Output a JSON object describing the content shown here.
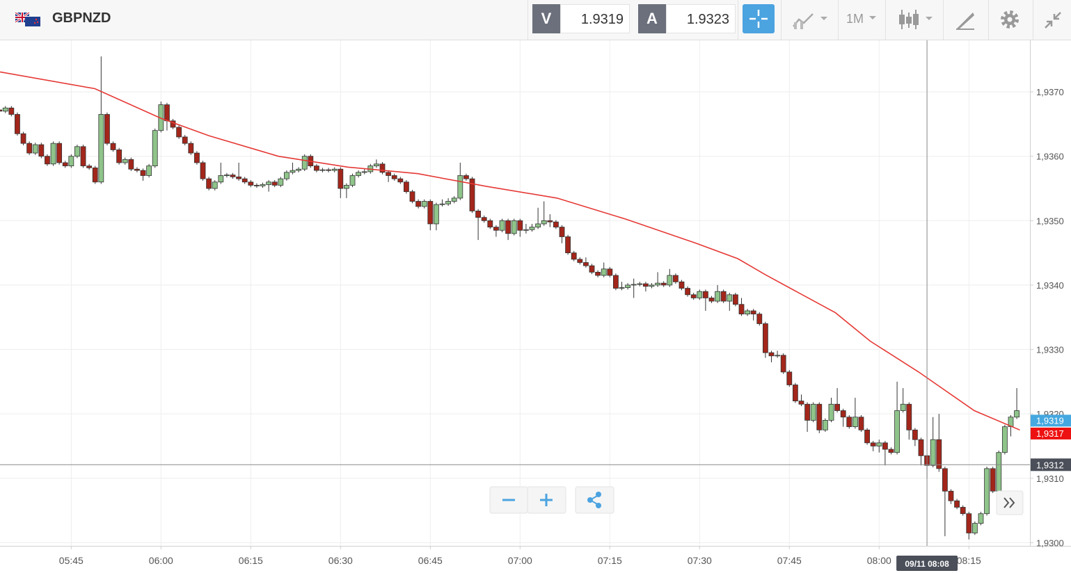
{
  "toolbar": {
    "symbol": "GBPNZD",
    "bid": {
      "label": "V",
      "value": 1.9319
    },
    "ask": {
      "label": "A",
      "value": 1.9323
    },
    "timeframe": "1M"
  },
  "chart_data": {
    "type": "candlestick",
    "up_color": "#8fc48a",
    "down_color": "#a3261b",
    "xlim": [
      333.1,
      505.2
    ],
    "ylim": [
      1.92995,
      1.9378
    ],
    "xticks": [
      {
        "value": 345,
        "label": "05:45"
      },
      {
        "value": 360,
        "label": "06:00"
      },
      {
        "value": 375,
        "label": "06:15"
      },
      {
        "value": 390,
        "label": "06:30"
      },
      {
        "value": 405,
        "label": "06:45"
      },
      {
        "value": 420,
        "label": "07:00"
      },
      {
        "value": 435,
        "label": "07:15"
      },
      {
        "value": 450,
        "label": "07:30"
      },
      {
        "value": 465,
        "label": "07:45"
      },
      {
        "value": 480,
        "label": "08:00"
      },
      {
        "value": 495,
        "label": "08:15"
      }
    ],
    "yticks": [
      {
        "value": 1.93,
        "label": "1,9300"
      },
      {
        "value": 1.931,
        "label": "1,9310"
      },
      {
        "value": 1.932,
        "label": "1,9320"
      },
      {
        "value": 1.933,
        "label": "1,9330"
      },
      {
        "value": 1.934,
        "label": "1,9340"
      },
      {
        "value": 1.935,
        "label": "1,9350"
      },
      {
        "value": 1.936,
        "label": "1,9360"
      },
      {
        "value": 1.937,
        "label": "1,9370"
      }
    ],
    "grid": true,
    "x": [
      333,
      334,
      335,
      336,
      337,
      338,
      339,
      340,
      341,
      342,
      343,
      344,
      345,
      346,
      347,
      348,
      349,
      350,
      351,
      352,
      353,
      354,
      355,
      356,
      357,
      358,
      359,
      360,
      361,
      362,
      363,
      364,
      365,
      366,
      367,
      368,
      369,
      370,
      371,
      372,
      373,
      374,
      375,
      376,
      377,
      378,
      379,
      380,
      381,
      382,
      383,
      384,
      385,
      386,
      387,
      388,
      389,
      390,
      391,
      392,
      393,
      394,
      395,
      396,
      397,
      398,
      399,
      400,
      401,
      402,
      403,
      404,
      405,
      406,
      407,
      408,
      409,
      410,
      411,
      412,
      413,
      414,
      415,
      416,
      417,
      418,
      419,
      420,
      421,
      422,
      423,
      424,
      425,
      426,
      427,
      428,
      429,
      430,
      431,
      432,
      433,
      434,
      435,
      436,
      437,
      438,
      439,
      440,
      441,
      442,
      443,
      444,
      445,
      446,
      447,
      448,
      449,
      450,
      451,
      452,
      453,
      454,
      455,
      456,
      457,
      458,
      459,
      460,
      461,
      462,
      463,
      464,
      465,
      466,
      467,
      468,
      469,
      470,
      471,
      472,
      473,
      474,
      475,
      476,
      477,
      478,
      479,
      480,
      481,
      482,
      483,
      484,
      485,
      486,
      487,
      488,
      489,
      490,
      491,
      492,
      493,
      494,
      495,
      496,
      497,
      498,
      499,
      500,
      501,
      502,
      503
    ],
    "ohlc": [
      [
        1.93672,
        1.93675,
        1.93667,
        1.9367
      ],
      [
        1.9367,
        1.93678,
        1.93667,
        1.93675
      ],
      [
        1.93675,
        1.93678,
        1.93662,
        1.93665
      ],
      [
        1.93665,
        1.93668,
        1.93632,
        1.93635
      ],
      [
        1.93635,
        1.93638,
        1.93617,
        1.9362
      ],
      [
        1.9362,
        1.93623,
        1.93602,
        1.93605
      ],
      [
        1.93605,
        1.93621,
        1.93602,
        1.93618
      ],
      [
        1.93618,
        1.93621,
        1.93597,
        1.936
      ],
      [
        1.936,
        1.93603,
        1.93585,
        1.93588
      ],
      [
        1.93588,
        1.93623,
        1.93585,
        1.9362
      ],
      [
        1.9362,
        1.93623,
        1.93587,
        1.9359
      ],
      [
        1.9359,
        1.93593,
        1.93582,
        1.93585
      ],
      [
        1.93585,
        1.93603,
        1.93582,
        1.936
      ],
      [
        1.936,
        1.93618,
        1.93597,
        1.93615
      ],
      [
        1.93615,
        1.93618,
        1.93582,
        1.93585
      ],
      [
        1.93585,
        1.93588,
        1.93579,
        1.93582
      ],
      [
        1.93582,
        1.93585,
        1.93557,
        1.9356
      ],
      [
        1.9356,
        1.93755,
        1.93557,
        1.93665
      ],
      [
        1.93665,
        1.93668,
        1.93617,
        1.9362
      ],
      [
        1.9362,
        1.93623,
        1.93607,
        1.9361
      ],
      [
        1.9361,
        1.93613,
        1.93587,
        1.9359
      ],
      [
        1.9359,
        1.93598,
        1.93587,
        1.93595
      ],
      [
        1.93595,
        1.93598,
        1.93577,
        1.9358
      ],
      [
        1.9358,
        1.93583,
        1.93575,
        1.93578
      ],
      [
        1.93578,
        1.93581,
        1.93562,
        1.9357
      ],
      [
        1.9357,
        1.93588,
        1.93567,
        1.93585
      ],
      [
        1.93585,
        1.93643,
        1.93582,
        1.9364
      ],
      [
        1.9364,
        1.93685,
        1.93637,
        1.9368
      ],
      [
        1.9368,
        1.93683,
        1.9364,
        1.93655
      ],
      [
        1.93655,
        1.93658,
        1.93642,
        1.93645
      ],
      [
        1.93645,
        1.93648,
        1.93627,
        1.9363
      ],
      [
        1.9363,
        1.93633,
        1.93617,
        1.9362
      ],
      [
        1.9362,
        1.93623,
        1.93602,
        1.93605
      ],
      [
        1.93605,
        1.93608,
        1.93587,
        1.9359
      ],
      [
        1.9359,
        1.93593,
        1.93562,
        1.93565
      ],
      [
        1.93565,
        1.93568,
        1.93547,
        1.9355
      ],
      [
        1.9355,
        1.93563,
        1.93547,
        1.9356
      ],
      [
        1.9356,
        1.9359,
        1.93557,
        1.9357
      ],
      [
        1.9357,
        1.93574,
        1.93567,
        1.93571
      ],
      [
        1.93571,
        1.93574,
        1.93565,
        1.93568
      ],
      [
        1.93568,
        1.9359,
        1.93562,
        1.93565
      ],
      [
        1.93565,
        1.93568,
        1.93557,
        1.9356
      ],
      [
        1.9356,
        1.93563,
        1.93552,
        1.93555
      ],
      [
        1.93555,
        1.93558,
        1.93551,
        1.93554
      ],
      [
        1.93554,
        1.93559,
        1.93551,
        1.93556
      ],
      [
        1.93556,
        1.93563,
        1.93545,
        1.9356
      ],
      [
        1.9356,
        1.93563,
        1.93552,
        1.93555
      ],
      [
        1.93555,
        1.93568,
        1.93552,
        1.93565
      ],
      [
        1.93565,
        1.93578,
        1.93562,
        1.93575
      ],
      [
        1.93575,
        1.9359,
        1.93572,
        1.93578
      ],
      [
        1.93578,
        1.93583,
        1.93575,
        1.9358
      ],
      [
        1.9358,
        1.93603,
        1.93577,
        1.936
      ],
      [
        1.936,
        1.93603,
        1.93582,
        1.93585
      ],
      [
        1.93585,
        1.93588,
        1.93575,
        1.93578
      ],
      [
        1.93578,
        1.93582,
        1.93575,
        1.93579
      ],
      [
        1.93579,
        1.93582,
        1.93575,
        1.93578
      ],
      [
        1.93578,
        1.93583,
        1.93575,
        1.9358
      ],
      [
        1.9358,
        1.93583,
        1.93535,
        1.9355
      ],
      [
        1.9355,
        1.93558,
        1.93535,
        1.93555
      ],
      [
        1.93555,
        1.93573,
        1.93552,
        1.9357
      ],
      [
        1.9357,
        1.93578,
        1.93567,
        1.93575
      ],
      [
        1.93575,
        1.9358,
        1.93572,
        1.93576
      ],
      [
        1.93576,
        1.93588,
        1.93573,
        1.93585
      ],
      [
        1.93585,
        1.93595,
        1.93582,
        1.93588
      ],
      [
        1.93588,
        1.93591,
        1.93572,
        1.93575
      ],
      [
        1.93575,
        1.93578,
        1.9356,
        1.9357
      ],
      [
        1.9357,
        1.93573,
        1.93562,
        1.93565
      ],
      [
        1.93565,
        1.93568,
        1.93557,
        1.9356
      ],
      [
        1.9356,
        1.93563,
        1.93542,
        1.93545
      ],
      [
        1.93545,
        1.93548,
        1.93527,
        1.9353
      ],
      [
        1.9353,
        1.93533,
        1.93519,
        1.93522
      ],
      [
        1.93522,
        1.93533,
        1.93519,
        1.9353
      ],
      [
        1.9353,
        1.93533,
        1.93485,
        1.93495
      ],
      [
        1.93495,
        1.93528,
        1.93485,
        1.93525
      ],
      [
        1.93525,
        1.93533,
        1.93522,
        1.93526
      ],
      [
        1.93526,
        1.93535,
        1.93523,
        1.9353
      ],
      [
        1.9353,
        1.93538,
        1.93527,
        1.93535
      ],
      [
        1.93535,
        1.9359,
        1.93532,
        1.9357
      ],
      [
        1.9357,
        1.93573,
        1.93562,
        1.93565
      ],
      [
        1.93565,
        1.93568,
        1.93512,
        1.93515
      ],
      [
        1.93515,
        1.93518,
        1.9347,
        1.93505
      ],
      [
        1.93505,
        1.93508,
        1.93497,
        1.935
      ],
      [
        1.935,
        1.93503,
        1.93487,
        1.9349
      ],
      [
        1.9349,
        1.93493,
        1.93475,
        1.93485
      ],
      [
        1.93485,
        1.93503,
        1.93482,
        1.935
      ],
      [
        1.935,
        1.93503,
        1.9347,
        1.9348
      ],
      [
        1.9348,
        1.93503,
        1.93477,
        1.935
      ],
      [
        1.935,
        1.93503,
        1.93475,
        1.93485
      ],
      [
        1.93485,
        1.93495,
        1.9348,
        1.93486
      ],
      [
        1.93486,
        1.93495,
        1.93483,
        1.9349
      ],
      [
        1.9349,
        1.9352,
        1.93487,
        1.93495
      ],
      [
        1.93495,
        1.9353,
        1.93492,
        1.935
      ],
      [
        1.935,
        1.9351,
        1.9349,
        1.93498
      ],
      [
        1.93498,
        1.93501,
        1.93487,
        1.9349
      ],
      [
        1.9349,
        1.93493,
        1.93465,
        1.93475
      ],
      [
        1.93475,
        1.93478,
        1.93447,
        1.9345
      ],
      [
        1.9345,
        1.93453,
        1.93437,
        1.9344
      ],
      [
        1.9344,
        1.93443,
        1.93432,
        1.93435
      ],
      [
        1.93435,
        1.93443,
        1.93427,
        1.9343
      ],
      [
        1.9343,
        1.93433,
        1.93417,
        1.9342
      ],
      [
        1.9342,
        1.93423,
        1.93412,
        1.93415
      ],
      [
        1.93415,
        1.93435,
        1.93412,
        1.93425
      ],
      [
        1.93425,
        1.93428,
        1.93412,
        1.93415
      ],
      [
        1.93415,
        1.93418,
        1.93392,
        1.93395
      ],
      [
        1.93395,
        1.93405,
        1.93392,
        1.93396
      ],
      [
        1.93396,
        1.93403,
        1.93393,
        1.934
      ],
      [
        1.934,
        1.9341,
        1.9338,
        1.93401
      ],
      [
        1.93401,
        1.93405,
        1.93398,
        1.93402
      ],
      [
        1.93402,
        1.93405,
        1.9339,
        1.93398
      ],
      [
        1.93398,
        1.93403,
        1.93395,
        1.934
      ],
      [
        1.934,
        1.9342,
        1.93397,
        1.93403
      ],
      [
        1.93403,
        1.93406,
        1.93397,
        1.934
      ],
      [
        1.934,
        1.93425,
        1.93397,
        1.93415
      ],
      [
        1.93415,
        1.93418,
        1.93402,
        1.93405
      ],
      [
        1.93405,
        1.93408,
        1.93392,
        1.93395
      ],
      [
        1.93395,
        1.93398,
        1.93382,
        1.93385
      ],
      [
        1.93385,
        1.93388,
        1.93377,
        1.9338
      ],
      [
        1.9338,
        1.93393,
        1.93377,
        1.9339
      ],
      [
        1.9339,
        1.93393,
        1.9336,
        1.9338
      ],
      [
        1.9338,
        1.93383,
        1.93372,
        1.93375
      ],
      [
        1.93375,
        1.934,
        1.93372,
        1.9339
      ],
      [
        1.9339,
        1.93393,
        1.93372,
        1.93375
      ],
      [
        1.93375,
        1.93388,
        1.9336,
        1.93385
      ],
      [
        1.93385,
        1.93388,
        1.93367,
        1.9337
      ],
      [
        1.9337,
        1.9338,
        1.93352,
        1.93355
      ],
      [
        1.93355,
        1.93363,
        1.93352,
        1.9336
      ],
      [
        1.9336,
        1.93363,
        1.93345,
        1.93355
      ],
      [
        1.93355,
        1.93358,
        1.93337,
        1.9334
      ],
      [
        1.9334,
        1.93343,
        1.93287,
        1.93295
      ],
      [
        1.93295,
        1.93298,
        1.9328,
        1.9329
      ],
      [
        1.9329,
        1.93298,
        1.93287,
        1.93291
      ],
      [
        1.93291,
        1.93294,
        1.93262,
        1.93265
      ],
      [
        1.93265,
        1.93268,
        1.93242,
        1.93245
      ],
      [
        1.93245,
        1.93248,
        1.93217,
        1.9322
      ],
      [
        1.9322,
        1.9323,
        1.93212,
        1.93215
      ],
      [
        1.93215,
        1.93218,
        1.93172,
        1.9319
      ],
      [
        1.9319,
        1.93218,
        1.93187,
        1.93215
      ],
      [
        1.93215,
        1.93218,
        1.9317,
        1.93175
      ],
      [
        1.93175,
        1.93193,
        1.93172,
        1.9319
      ],
      [
        1.9319,
        1.93225,
        1.93187,
        1.93215
      ],
      [
        1.93215,
        1.9324,
        1.93202,
        1.93205
      ],
      [
        1.93205,
        1.93208,
        1.9318,
        1.93195
      ],
      [
        1.93195,
        1.93198,
        1.93177,
        1.9318
      ],
      [
        1.9318,
        1.93225,
        1.93177,
        1.93195
      ],
      [
        1.93195,
        1.93198,
        1.93172,
        1.93175
      ],
      [
        1.93175,
        1.93178,
        1.93152,
        1.93155
      ],
      [
        1.93155,
        1.93158,
        1.93142,
        1.9315
      ],
      [
        1.9315,
        1.9316,
        1.9314,
        1.93155
      ],
      [
        1.93155,
        1.93158,
        1.9312,
        1.93145
      ],
      [
        1.93145,
        1.93148,
        1.93137,
        1.9314
      ],
      [
        1.9314,
        1.9325,
        1.93137,
        1.93205
      ],
      [
        1.93205,
        1.9324,
        1.93202,
        1.93215
      ],
      [
        1.93215,
        1.93218,
        1.9316,
        1.93175
      ],
      [
        1.93175,
        1.93178,
        1.9315,
        1.9316
      ],
      [
        1.9316,
        1.93163,
        1.9312,
        1.93135
      ],
      [
        1.93135,
        1.93138,
        1.931,
        1.9312
      ],
      [
        1.9312,
        1.93195,
        1.93117,
        1.9316
      ],
      [
        1.9316,
        1.932,
        1.9311,
        1.93115
      ],
      [
        1.93115,
        1.93118,
        1.9301,
        1.9308
      ],
      [
        1.9308,
        1.93083,
        1.9306,
        1.93065
      ],
      [
        1.93065,
        1.93068,
        1.93052,
        1.93055
      ],
      [
        1.93055,
        1.93058,
        1.93042,
        1.93045
      ],
      [
        1.93045,
        1.93048,
        1.93005,
        1.93015
      ],
      [
        1.93015,
        1.93033,
        1.93012,
        1.9303
      ],
      [
        1.9303,
        1.93048,
        1.93027,
        1.93045
      ],
      [
        1.93045,
        1.93118,
        1.93042,
        1.93115
      ],
      [
        1.93115,
        1.93118,
        1.93077,
        1.9308
      ],
      [
        1.9308,
        1.93143,
        1.93077,
        1.9314
      ],
      [
        1.9314,
        1.93183,
        1.93137,
        1.9318
      ],
      [
        1.9318,
        1.93198,
        1.93165,
        1.93195
      ],
      [
        1.93195,
        1.9324,
        1.93192,
        1.93205
      ]
    ],
    "ma": {
      "color": "#e53935",
      "x": [
        333.1,
        348.95,
        360.0,
        368.0,
        379.6,
        391.3,
        402.9,
        414.5,
        426.2,
        437.8,
        449.4,
        456.4,
        461.0,
        472.7,
        478.5,
        486.6,
        495.9,
        503.5
      ],
      "values": [
        1.93731,
        1.93705,
        1.93659,
        1.93632,
        1.936,
        1.93583,
        1.93573,
        1.93553,
        1.93535,
        1.93502,
        1.93465,
        1.93441,
        1.93416,
        1.93357,
        1.93313,
        1.93265,
        1.93205,
        1.93175
      ]
    },
    "price_tags": [
      {
        "value": 1.9319,
        "label": "1,9319",
        "color": "#45a8e0"
      },
      {
        "value": 1.9317,
        "label": "1,9317",
        "color": "#ee1111"
      }
    ],
    "crosshair": {
      "price": {
        "value": 1.93121,
        "label": "1,9312"
      },
      "time": {
        "value": 488,
        "label": "09/11 08:08"
      }
    }
  }
}
